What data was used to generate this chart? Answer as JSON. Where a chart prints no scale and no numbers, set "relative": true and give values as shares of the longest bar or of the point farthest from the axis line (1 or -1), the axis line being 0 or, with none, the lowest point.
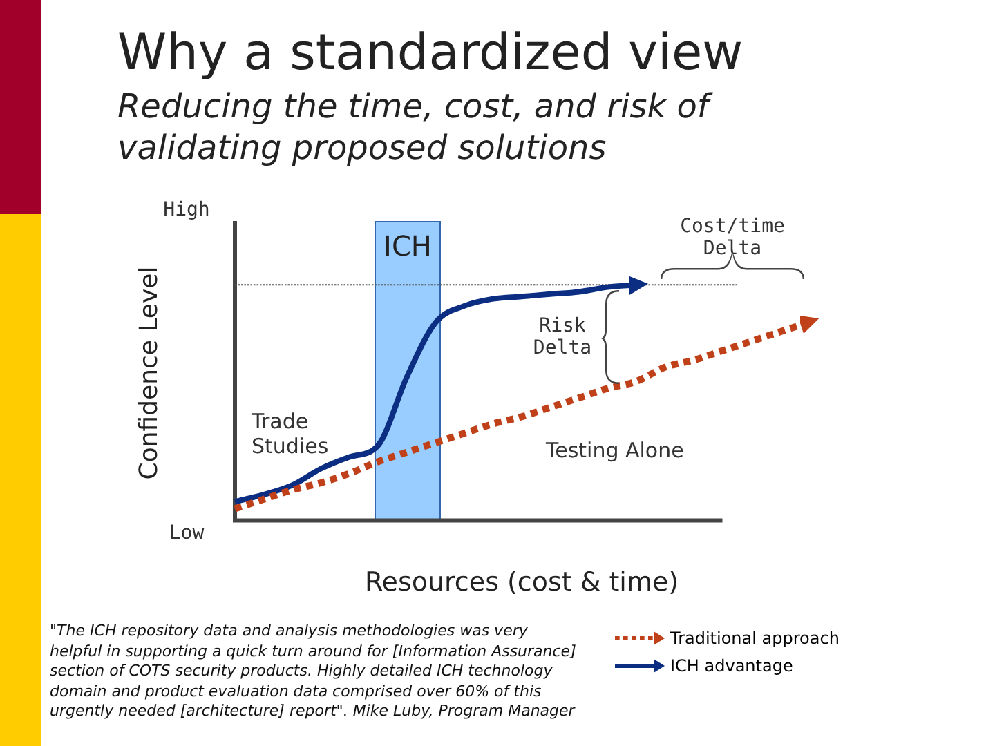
{
  "chart_data": {
    "type": "line",
    "title": "Why a standardized view",
    "subtitle": "Reducing the time, cost, and risk of validating proposed solutions",
    "xlabel": "Resources (cost & time)",
    "ylabel": "Confidence Level",
    "relative": true,
    "categories": [
      null,
      null,
      null,
      null,
      null,
      null,
      null,
      null,
      null,
      null,
      null,
      null,
      null,
      null,
      null,
      null,
      null,
      null,
      null,
      null,
      null
    ],
    "series": [
      {
        "name": "Traditional approach",
        "color": "#c0401a",
        "line_style": "dotted",
        "values": [
          0.05,
          0.09,
          0.13,
          0.16,
          0.2,
          0.25,
          0.29,
          0.33,
          0.37,
          0.41,
          0.44,
          0.48,
          0.52,
          0.56,
          0.59,
          0.65,
          0.68,
          0.72,
          0.76,
          0.8,
          0.84
        ]
      },
      {
        "name": "ICH advantage",
        "color": "#0b2e82",
        "line_style": "solid",
        "values": [
          0.08,
          0.11,
          0.15,
          0.22,
          0.27,
          0.32,
          0.61,
          0.84,
          0.91,
          0.94,
          0.95,
          0.96,
          0.97,
          0.99,
          1,
          null,
          null,
          null,
          null,
          null,
          null
        ]
      }
    ],
    "ref_lines": [
      {
        "axis": "y",
        "value": 1,
        "line_style": "dotted",
        "color": "#555555"
      }
    ],
    "annotations": [
      "ICH",
      "Cost/time Delta",
      "Risk Delta",
      "Trade Studies",
      "Testing Alone",
      "High",
      "Low",
      "\"The ICH repository data and analysis methodologies was very helpful in supporting a quick turn around for [Information Assurance] section of COTS security products. Highly detailed ICH technology domain and product evaluation data comprised over 60% of this urgently needed [architecture] report\". Mike Luby, Program Manager"
    ],
    "legend": "bottom right",
    "marker": "none"
  }
}
